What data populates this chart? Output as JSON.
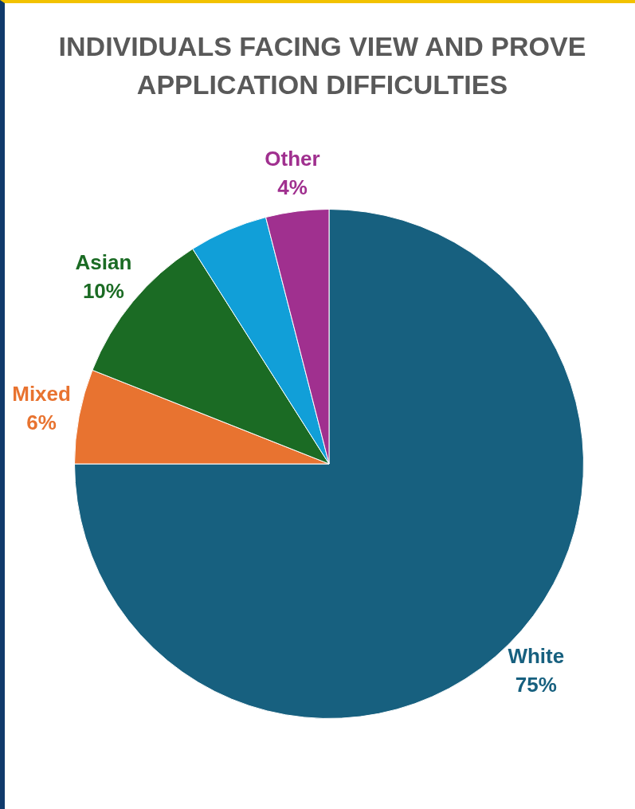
{
  "chart_data": {
    "type": "pie",
    "title": "INDIVIDUALS FACING VIEW AND PROVE APPLICATION DIFFICULTIES",
    "categories": [
      "White",
      "Mixed",
      "Asian",
      null,
      "Other"
    ],
    "values": [
      75,
      6,
      10,
      5,
      4
    ],
    "colors": [
      "#17607f",
      "#e87330",
      "#1b6b24",
      "#119fd8",
      "#a0308f"
    ],
    "value_labels": [
      "75%",
      "6%",
      "10%",
      null,
      "4%"
    ],
    "legend": false
  }
}
